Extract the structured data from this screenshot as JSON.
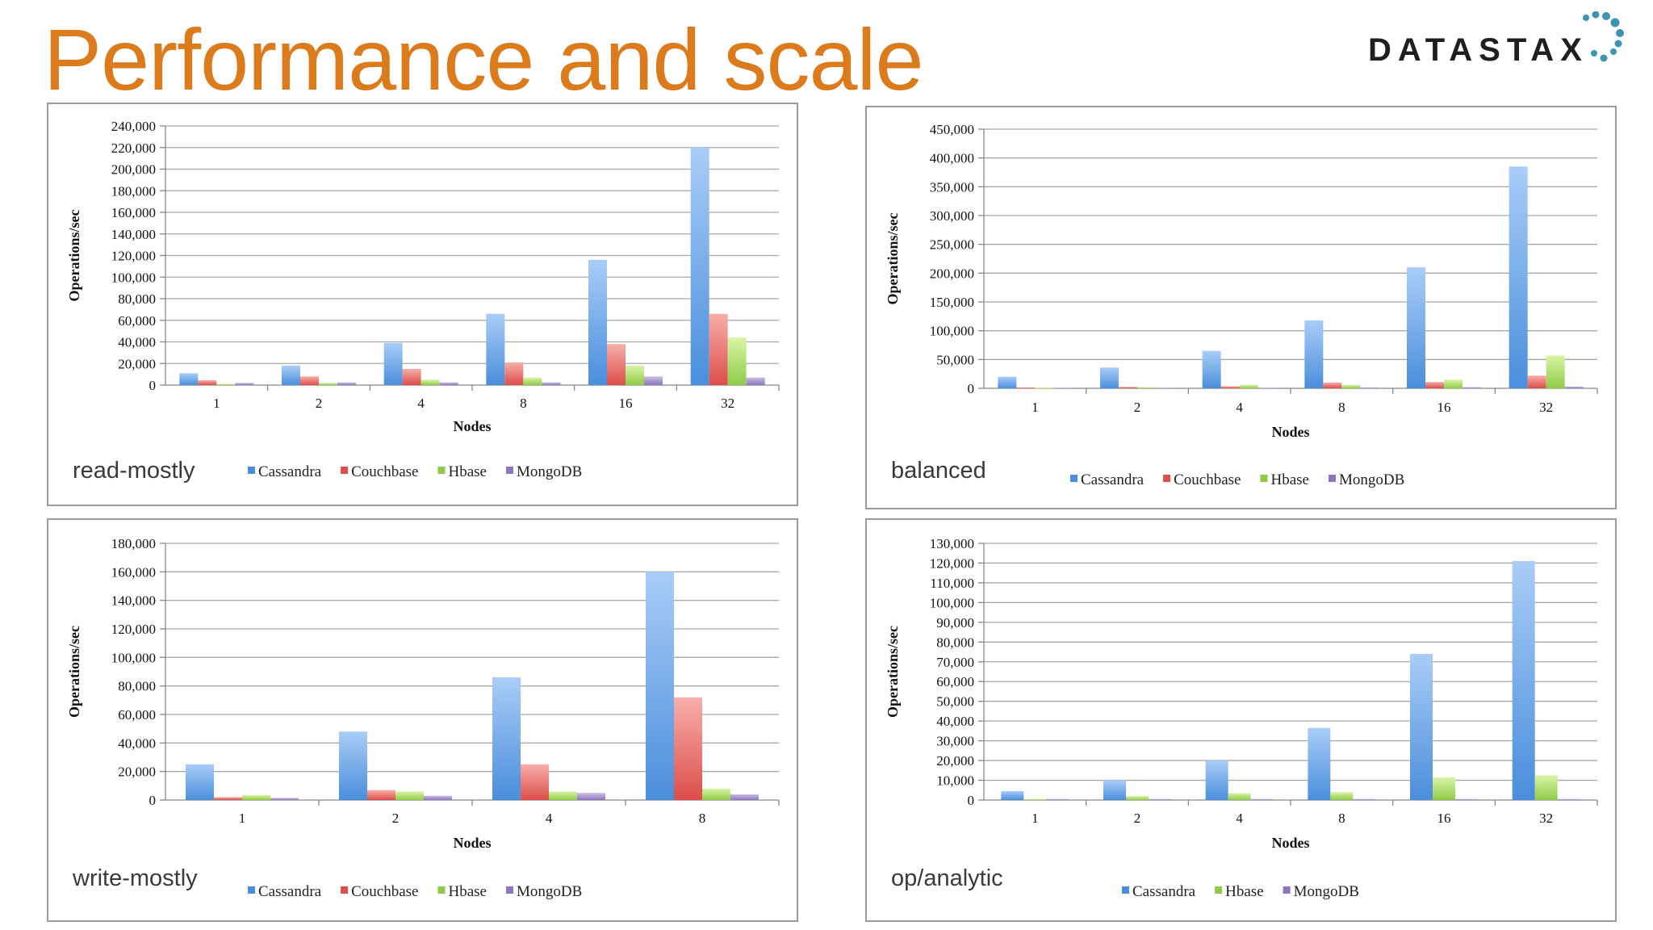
{
  "title": "Performance and scale",
  "logo_text": "DATASTAX",
  "colors": {
    "title": "#dc7b1c",
    "Cassandra": [
      "#a9cdf7",
      "#4a8edb"
    ],
    "Couchbase": [
      "#f8aeaa",
      "#dc4e4a"
    ],
    "Hbase": [
      "#d9f4a6",
      "#8fcb48"
    ],
    "MongoDB": [
      "#cbbde4",
      "#8c75bd"
    ],
    "logo_dots": "#3b94b0"
  },
  "chart_data": [
    {
      "type": "bar",
      "name": "read-mostly",
      "xlabel": "Nodes",
      "ylabel": "Operations/sec",
      "ylim": [
        0,
        240000
      ],
      "ytick_step": 20000,
      "categories": [
        "1",
        "2",
        "4",
        "8",
        "16",
        "32"
      ],
      "series": [
        {
          "name": "Cassandra",
          "values": [
            11000,
            18000,
            39000,
            66000,
            116000,
            220000
          ]
        },
        {
          "name": "Couchbase",
          "values": [
            4500,
            8000,
            15000,
            21000,
            38000,
            66000
          ]
        },
        {
          "name": "Hbase",
          "values": [
            1000,
            2000,
            5000,
            7000,
            18000,
            44000
          ]
        },
        {
          "name": "MongoDB",
          "values": [
            2000,
            2500,
            2500,
            2500,
            8000,
            7000
          ]
        }
      ],
      "tick_labels": [
        "0",
        "20,000",
        "40,000",
        "60,000",
        "80,000",
        "100,000",
        "120,000",
        "140,000",
        "160,000",
        "180,000",
        "200,000",
        "220,000",
        "240,000"
      ],
      "legend": [
        "Cassandra",
        "Couchbase",
        "Hbase",
        "MongoDB"
      ],
      "grid": true,
      "legend_position": "bottom"
    },
    {
      "type": "bar",
      "name": "balanced",
      "xlabel": "Nodes",
      "ylabel": "Operations/sec",
      "ylim": [
        0,
        450000
      ],
      "ytick_step": 50000,
      "categories": [
        "1",
        "2",
        "4",
        "8",
        "16",
        "32"
      ],
      "series": [
        {
          "name": "Cassandra",
          "values": [
            20000,
            36000,
            65000,
            118000,
            210000,
            385000
          ]
        },
        {
          "name": "Couchbase",
          "values": [
            1500,
            2500,
            3500,
            10000,
            11000,
            22000
          ]
        },
        {
          "name": "Hbase",
          "values": [
            1000,
            2000,
            6000,
            6000,
            15000,
            57000
          ]
        },
        {
          "name": "MongoDB",
          "values": [
            1000,
            1000,
            1000,
            1500,
            2000,
            3000
          ]
        }
      ],
      "tick_labels": [
        "0",
        "50,000",
        "100,000",
        "150,000",
        "200,000",
        "250,000",
        "300,000",
        "350,000",
        "400,000",
        "450,000"
      ],
      "legend": [
        "Cassandra",
        "Couchbase",
        "Hbase",
        "MongoDB"
      ],
      "grid": true,
      "legend_position": "bottom"
    },
    {
      "type": "bar",
      "name": "write-mostly",
      "xlabel": "Nodes",
      "ylabel": "Operations/sec",
      "ylim": [
        0,
        180000
      ],
      "ytick_step": 20000,
      "categories": [
        "1",
        "2",
        "4",
        "8"
      ],
      "series": [
        {
          "name": "Cassandra",
          "values": [
            25000,
            48000,
            86000,
            160000
          ]
        },
        {
          "name": "Couchbase",
          "values": [
            2000,
            7000,
            25000,
            72000
          ]
        },
        {
          "name": "Hbase",
          "values": [
            3500,
            6000,
            6000,
            8000
          ]
        },
        {
          "name": "MongoDB",
          "values": [
            1500,
            3000,
            5000,
            4000
          ]
        }
      ],
      "tick_labels": [
        "0",
        "20,000",
        "40,000",
        "60,000",
        "80,000",
        "100,000",
        "120,000",
        "140,000",
        "160,000",
        "180,000"
      ],
      "legend": [
        "Cassandra",
        "Couchbase",
        "Hbase",
        "MongoDB"
      ],
      "grid": true,
      "legend_position": "bottom"
    },
    {
      "type": "bar",
      "name": "op/analytic",
      "xlabel": "Nodes",
      "ylabel": "Operations/sec",
      "ylim": [
        0,
        130000
      ],
      "ytick_step": 10000,
      "categories": [
        "1",
        "2",
        "4",
        "8",
        "16",
        "32"
      ],
      "series": [
        {
          "name": "Cassandra",
          "values": [
            4500,
            10000,
            20000,
            36500,
            74000,
            121000
          ]
        },
        {
          "name": "Hbase",
          "values": [
            500,
            2000,
            3500,
            4000,
            11500,
            12500
          ]
        },
        {
          "name": "MongoDB",
          "values": [
            500,
            500,
            500,
            500,
            500,
            500
          ]
        }
      ],
      "tick_labels": [
        "0",
        "10,000",
        "20,000",
        "30,000",
        "40,000",
        "50,000",
        "60,000",
        "70,000",
        "80,000",
        "90,000",
        "100,000",
        "110,000",
        "120,000",
        "130,000"
      ],
      "legend": [
        "Cassandra",
        "Hbase",
        "MongoDB"
      ],
      "grid": true,
      "legend_position": "bottom"
    }
  ]
}
